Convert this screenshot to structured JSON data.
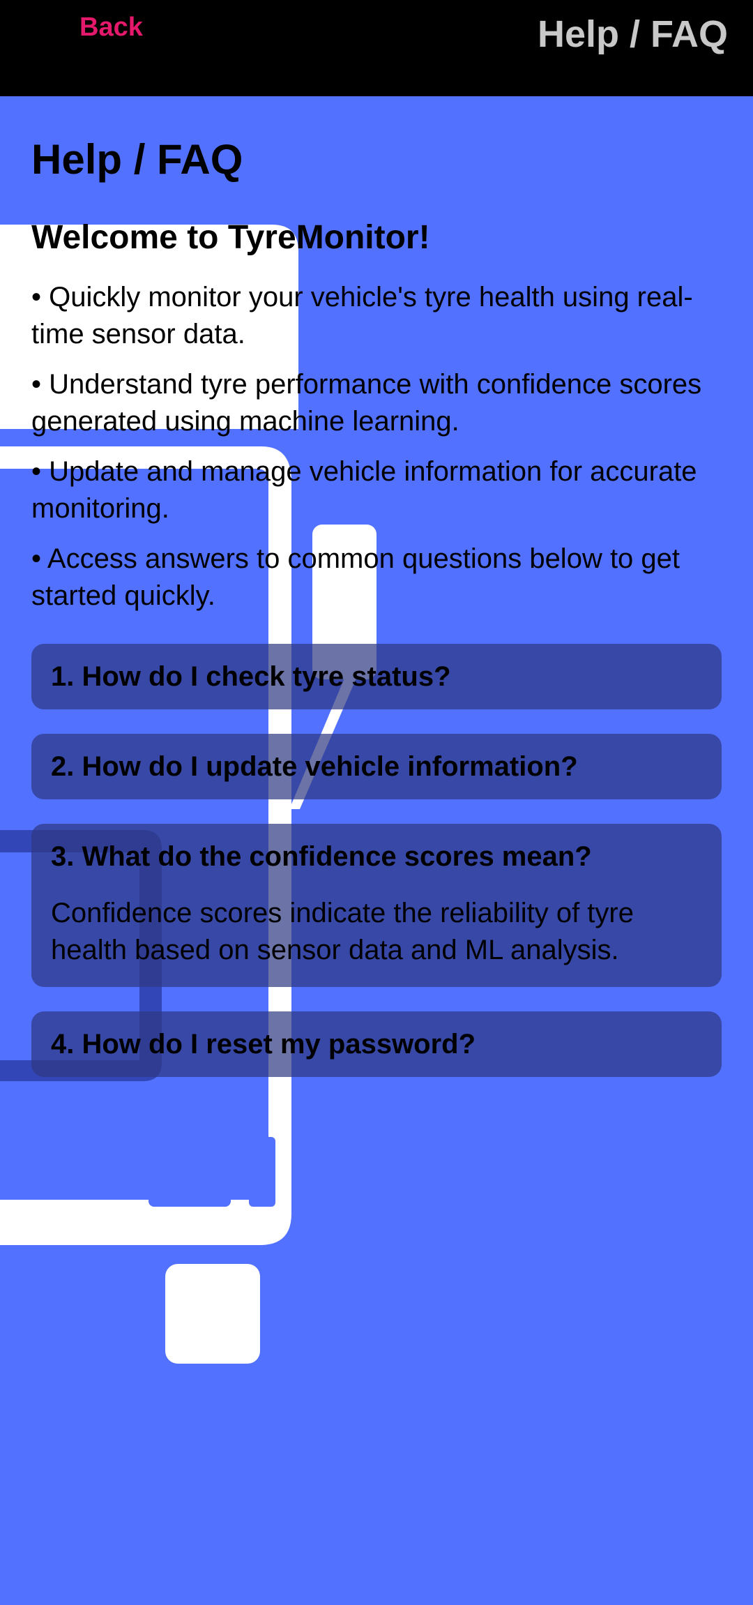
{
  "header": {
    "back_label": "Back",
    "title": "Help / FAQ"
  },
  "page": {
    "title": "Help / FAQ",
    "welcome_title": "Welcome to TyreMonitor!",
    "bullets": [
      "• Quickly monitor your vehicle's tyre health using real-time sensor data.",
      "• Understand tyre performance with confidence scores generated using machine learning.",
      "• Update and manage vehicle information for accurate monitoring.",
      "• Access answers to common questions below to get started quickly."
    ]
  },
  "faq": [
    {
      "question": "1. How do I check tyre status?",
      "answer": ""
    },
    {
      "question": "2. How do I update vehicle information?",
      "answer": ""
    },
    {
      "question": "3. What do the confidence scores mean?",
      "answer": "Confidence scores indicate the reliability of tyre health based on sensor data and ML analysis."
    },
    {
      "question": "4. How do I reset my password?",
      "answer": ""
    }
  ],
  "colors": {
    "background": "#5271ff",
    "header_bg": "#000000",
    "back_link": "#e5196b",
    "header_title": "#c8c8c8",
    "faq_card": "#2d3782"
  },
  "icons": {
    "background_art": "truck-illustration"
  }
}
